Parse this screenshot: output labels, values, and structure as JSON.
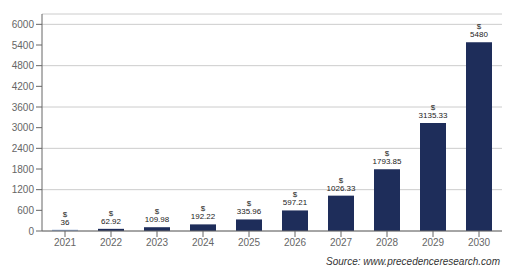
{
  "chart_data": {
    "type": "bar",
    "categories": [
      "2021",
      "2022",
      "2023",
      "2024",
      "2025",
      "2026",
      "2027",
      "2028",
      "2029",
      "2030"
    ],
    "values": [
      36,
      62.92,
      109.98,
      192.22,
      335.96,
      597.21,
      1026.33,
      1793.85,
      3135.33,
      5480
    ],
    "value_labels": [
      "$ 36",
      "$ 62.92",
      "$ 109.98",
      "$ 192.22",
      "$ 335.96",
      "$ 597.21",
      "$ 1026.33",
      "$ 1793.85",
      "$ 3135.33",
      "$ 5480"
    ],
    "data_labels": true,
    "colors": [
      "#8fa8d0",
      "#1e2d5a",
      "#1e2d5a",
      "#1e2d5a",
      "#1e2d5a",
      "#1e2d5a",
      "#1e2d5a",
      "#1e2d5a",
      "#1e2d5a",
      "#1e2d5a"
    ],
    "ylim": [
      0,
      6300
    ],
    "yticks": [
      0,
      600,
      1200,
      1800,
      2400,
      3000,
      3600,
      4200,
      4800,
      5400,
      6000
    ],
    "grid": true,
    "annotations": [
      "Source: www.precedenceresearch.com"
    ]
  }
}
